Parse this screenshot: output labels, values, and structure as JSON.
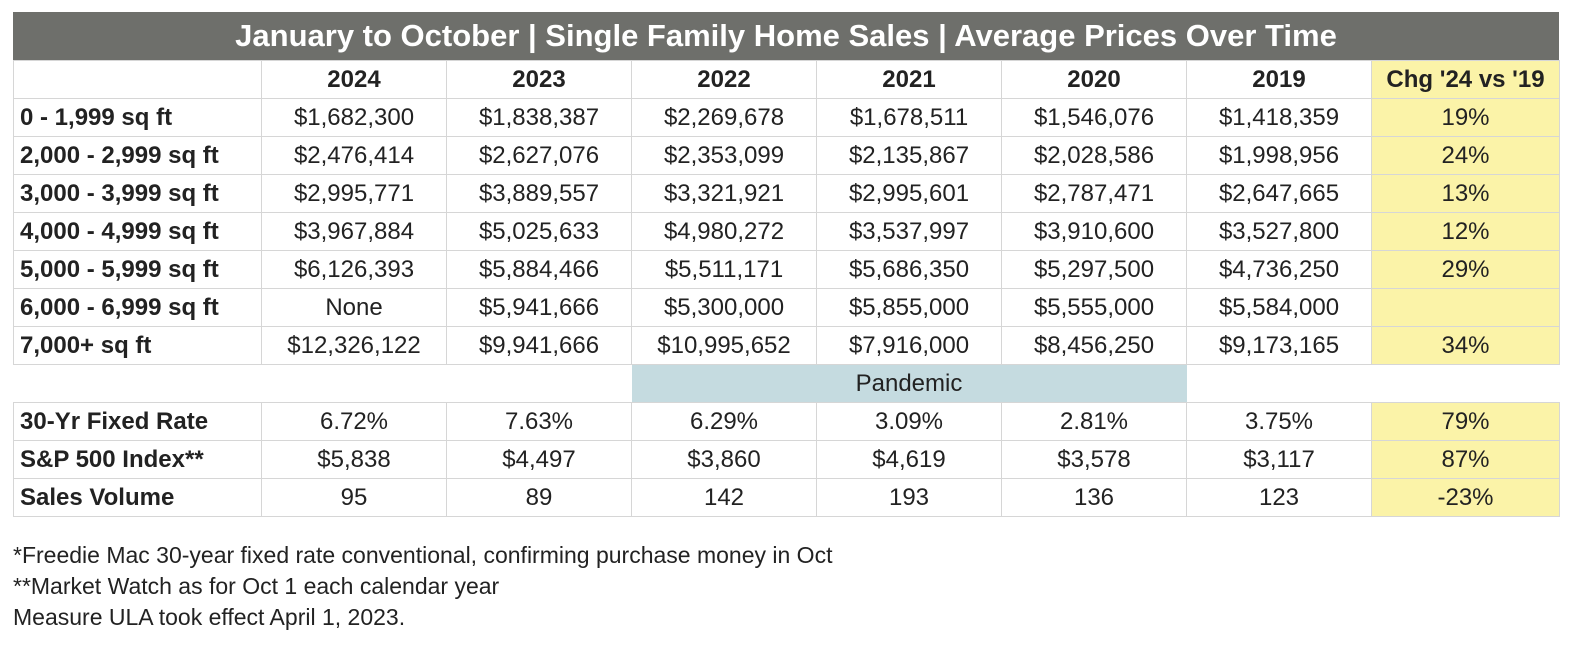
{
  "title": "January to October | Single Family Home Sales | Average Prices Over Time",
  "chart_data": {
    "type": "table",
    "columns": [
      "2024",
      "2023",
      "2022",
      "2021",
      "2020",
      "2019",
      "Chg '24 vs '19"
    ],
    "price_rows": [
      {
        "label": "0 - 1,999 sq ft",
        "values": [
          "$1,682,300",
          "$1,838,387",
          "$2,269,678",
          "$1,678,511",
          "$1,546,076",
          "$1,418,359"
        ],
        "chg": "19%"
      },
      {
        "label": "2,000 - 2,999 sq ft",
        "values": [
          "$2,476,414",
          "$2,627,076",
          "$2,353,099",
          "$2,135,867",
          "$2,028,586",
          "$1,998,956"
        ],
        "chg": "24%"
      },
      {
        "label": "3,000 - 3,999 sq ft",
        "values": [
          "$2,995,771",
          "$3,889,557",
          "$3,321,921",
          "$2,995,601",
          "$2,787,471",
          "$2,647,665"
        ],
        "chg": "13%"
      },
      {
        "label": "4,000 - 4,999 sq ft",
        "values": [
          "$3,967,884",
          "$5,025,633",
          "$4,980,272",
          "$3,537,997",
          "$3,910,600",
          "$3,527,800"
        ],
        "chg": "12%"
      },
      {
        "label": "5,000 - 5,999 sq ft",
        "values": [
          "$6,126,393",
          "$5,884,466",
          "$5,511,171",
          "$5,686,350",
          "$5,297,500",
          "$4,736,250"
        ],
        "chg": "29%"
      },
      {
        "label": "6,000 - 6,999 sq ft",
        "values": [
          "None",
          "$5,941,666",
          "$5,300,000",
          "$5,855,000",
          "$5,555,000",
          "$5,584,000"
        ],
        "chg": ""
      },
      {
        "label": "7,000+ sq ft",
        "values": [
          "$12,326,122",
          "$9,941,666",
          "$10,995,652",
          "$7,916,000",
          "$8,456,250",
          "$9,173,165"
        ],
        "chg": "34%"
      }
    ],
    "pandemic_label": "Pandemic",
    "indicator_rows": [
      {
        "label": "30-Yr Fixed Rate",
        "values": [
          "6.72%",
          "7.63%",
          "6.29%",
          "3.09%",
          "2.81%",
          "3.75%"
        ],
        "chg": "79%"
      },
      {
        "label": "S&P 500 Index**",
        "values": [
          "$5,838",
          "$4,497",
          "$3,860",
          "$4,619",
          "$3,578",
          "$3,117"
        ],
        "chg": "87%"
      },
      {
        "label": "Sales Volume",
        "values": [
          "95",
          "89",
          "142",
          "193",
          "136",
          "123"
        ],
        "chg": "-23%"
      }
    ]
  },
  "footnotes": [
    "*Freedie Mac 30-year fixed rate conventional, confirming purchase money in Oct",
    "**Market Watch as for Oct 1 each calendar year",
    "Measure ULA took effect April 1, 2023."
  ],
  "colors": {
    "title_bg": "#6e6f6b",
    "change_highlight": "#fbf3a8",
    "pandemic_band": "#c5dbe0"
  }
}
